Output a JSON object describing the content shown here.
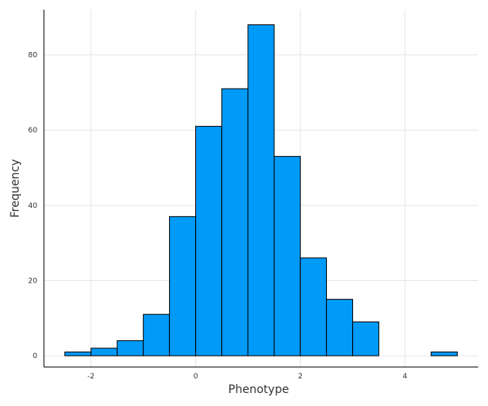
{
  "chart_data": {
    "type": "bar",
    "subtype": "histogram",
    "title": "",
    "xlabel": "Phenotype",
    "ylabel": "Frequency",
    "bin_width": 0.5,
    "bins": [
      {
        "start": -2.5,
        "end": -2.0,
        "count": 1
      },
      {
        "start": -2.0,
        "end": -1.5,
        "count": 2
      },
      {
        "start": -1.5,
        "end": -1.0,
        "count": 4
      },
      {
        "start": -1.0,
        "end": -0.5,
        "count": 11
      },
      {
        "start": -0.5,
        "end": 0.0,
        "count": 37
      },
      {
        "start": 0.0,
        "end": 0.5,
        "count": 61
      },
      {
        "start": 0.5,
        "end": 1.0,
        "count": 71
      },
      {
        "start": 1.0,
        "end": 1.5,
        "count": 88
      },
      {
        "start": 1.5,
        "end": 2.0,
        "count": 53
      },
      {
        "start": 2.0,
        "end": 2.5,
        "count": 26
      },
      {
        "start": 2.5,
        "end": 3.0,
        "count": 15
      },
      {
        "start": 3.0,
        "end": 3.5,
        "count": 9
      },
      {
        "start": 3.5,
        "end": 4.0,
        "count": 0
      },
      {
        "start": 4.0,
        "end": 4.5,
        "count": 0
      },
      {
        "start": 4.5,
        "end": 5.0,
        "count": 1
      }
    ],
    "xlim": [
      -2.9,
      5.4
    ],
    "ylim": [
      -3,
      92
    ],
    "xticks": [
      -2,
      0,
      2,
      4
    ],
    "xtick_labels": [
      "-2",
      "0",
      "2",
      "4"
    ],
    "yticks": [
      0,
      20,
      40,
      60,
      80
    ],
    "ytick_labels": [
      "0",
      "20",
      "40",
      "60",
      "80"
    ],
    "grid": true,
    "legend": false,
    "bar_color": "#009AF9",
    "edge_color": "#000000",
    "grid_color": "#E6E6E6"
  }
}
